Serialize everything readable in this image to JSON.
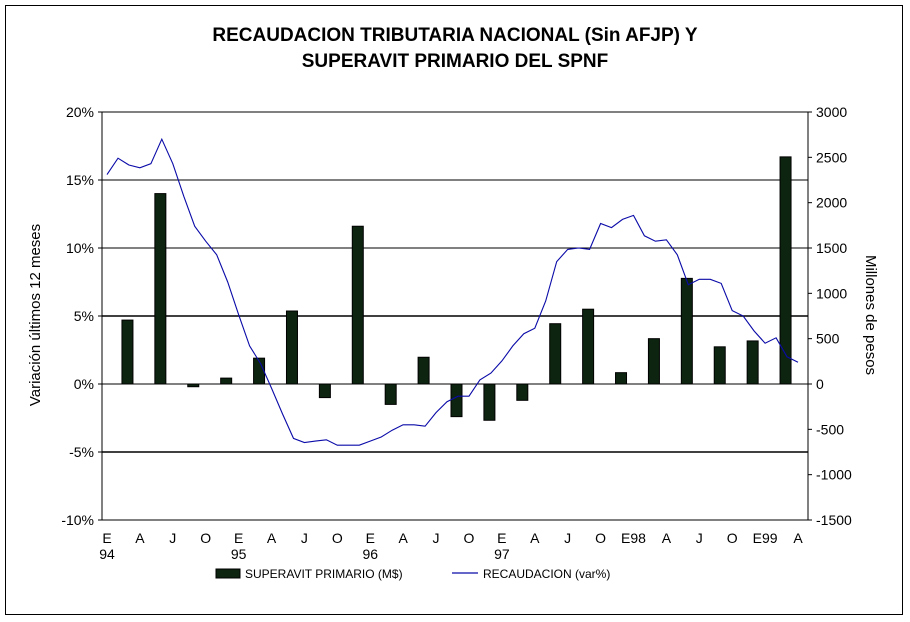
{
  "chart_data": {
    "type": "bar+line",
    "title_line1": "RECAUDACION TRIBUTARIA NACIONAL (Sin AFJP) Y",
    "title_line2": "SUPERAVIT PRIMARIO DEL SPNF",
    "y_left_label": "Variación últimos 12 meses",
    "y_right_label": "Millones de pesos",
    "y_left_ticks": [
      "20%",
      "15%",
      "10%",
      "5%",
      "0%",
      "-5%",
      "-10%"
    ],
    "y_left_range": [
      -10,
      20
    ],
    "y_right_ticks": [
      "3000",
      "2500",
      "2000",
      "1500",
      "1000",
      "500",
      "0",
      "-500",
      "-1000",
      "-1500"
    ],
    "y_right_range": [
      -1500,
      3000
    ],
    "grid": "horizontal",
    "x_ticks": [
      {
        "label": "E",
        "sub": "94"
      },
      {
        "label": "A",
        "sub": ""
      },
      {
        "label": "J",
        "sub": ""
      },
      {
        "label": "O",
        "sub": ""
      },
      {
        "label": "E",
        "sub": "95"
      },
      {
        "label": "A",
        "sub": ""
      },
      {
        "label": "J",
        "sub": ""
      },
      {
        "label": "O",
        "sub": ""
      },
      {
        "label": "E",
        "sub": "96"
      },
      {
        "label": "A",
        "sub": ""
      },
      {
        "label": "J",
        "sub": ""
      },
      {
        "label": "O",
        "sub": ""
      },
      {
        "label": "E",
        "sub": "97"
      },
      {
        "label": "A",
        "sub": ""
      },
      {
        "label": "J",
        "sub": ""
      },
      {
        "label": "O",
        "sub": ""
      },
      {
        "label": "E98",
        "sub": ""
      },
      {
        "label": "A",
        "sub": ""
      },
      {
        "label": "J",
        "sub": ""
      },
      {
        "label": "O",
        "sub": ""
      },
      {
        "label": "E99",
        "sub": ""
      },
      {
        "label": "A",
        "sub": ""
      }
    ],
    "series": [
      {
        "name": "SUPERAVIT PRIMARIO (M$)",
        "kind": "bar",
        "axis": "right",
        "color": "#0d2410",
        "values": [
          705,
          2100,
          -30,
          65,
          285,
          805,
          -150,
          1740,
          -225,
          295,
          -360,
          -400,
          -180,
          665,
          825,
          125,
          500,
          1165,
          410,
          475,
          2505
        ]
      },
      {
        "name": "RECAUDACION (var%)",
        "kind": "line",
        "axis": "left",
        "color": "#0a0aa8",
        "months": 64,
        "values": [
          15.4,
          16.6,
          16.1,
          15.9,
          16.2,
          18.0,
          16.2,
          13.8,
          11.6,
          10.5,
          9.5,
          7.5,
          5.1,
          2.8,
          1.5,
          -0.3,
          -2.2,
          -4.0,
          -4.3,
          -4.2,
          -4.1,
          -4.5,
          -4.5,
          -4.5,
          -4.2,
          -3.9,
          -3.4,
          -3.0,
          -3.0,
          -3.1,
          -2.1,
          -1.3,
          -0.9,
          -0.9,
          0.3,
          0.8,
          1.7,
          2.8,
          3.7,
          4.1,
          6.1,
          9.0,
          9.9,
          10.0,
          9.9,
          11.8,
          11.5,
          12.1,
          12.4,
          10.9,
          10.5,
          10.6,
          9.5,
          7.3,
          7.7,
          7.7,
          7.4,
          5.4,
          5.0,
          3.9,
          3.0,
          3.4,
          2.0,
          1.6
        ]
      }
    ]
  }
}
